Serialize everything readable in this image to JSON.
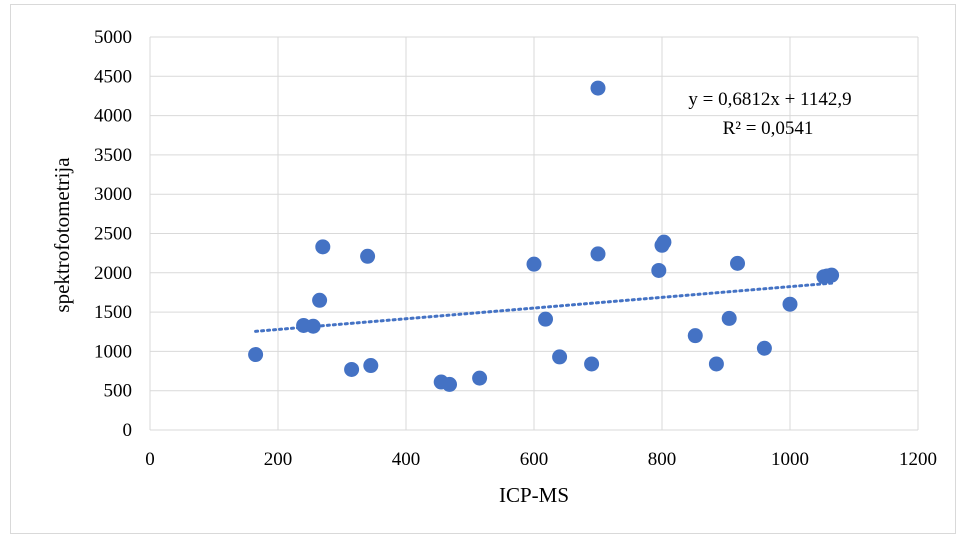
{
  "chart_data": {
    "type": "scatter",
    "xlabel": "ICP-MS",
    "ylabel": "spektrofotometrija",
    "xlim": [
      0,
      1200
    ],
    "ylim": [
      0,
      5000
    ],
    "x_ticks": [
      "0",
      "200",
      "400",
      "600",
      "800",
      "1000",
      "1200"
    ],
    "y_ticks": [
      "0",
      "500",
      "1000",
      "1500",
      "2000",
      "2500",
      "3000",
      "3500",
      "4000",
      "4500",
      "5000"
    ],
    "grid": true,
    "color": "#4472c4",
    "points": [
      {
        "x": 165,
        "y": 960
      },
      {
        "x": 240,
        "y": 1330
      },
      {
        "x": 255,
        "y": 1320
      },
      {
        "x": 265,
        "y": 1650
      },
      {
        "x": 270,
        "y": 2330
      },
      {
        "x": 315,
        "y": 770
      },
      {
        "x": 340,
        "y": 2210
      },
      {
        "x": 345,
        "y": 820
      },
      {
        "x": 455,
        "y": 610
      },
      {
        "x": 468,
        "y": 580
      },
      {
        "x": 515,
        "y": 660
      },
      {
        "x": 600,
        "y": 2110
      },
      {
        "x": 618,
        "y": 1410
      },
      {
        "x": 640,
        "y": 930
      },
      {
        "x": 690,
        "y": 840
      },
      {
        "x": 700,
        "y": 2240
      },
      {
        "x": 700,
        "y": 4350
      },
      {
        "x": 795,
        "y": 2030
      },
      {
        "x": 800,
        "y": 2350
      },
      {
        "x": 803,
        "y": 2390
      },
      {
        "x": 852,
        "y": 1200
      },
      {
        "x": 885,
        "y": 840
      },
      {
        "x": 905,
        "y": 1420
      },
      {
        "x": 918,
        "y": 2120
      },
      {
        "x": 960,
        "y": 1040
      },
      {
        "x": 1000,
        "y": 1600
      },
      {
        "x": 1053,
        "y": 1950
      },
      {
        "x": 1058,
        "y": 1960
      },
      {
        "x": 1065,
        "y": 1970
      }
    ],
    "trendline": {
      "type": "linear",
      "slope": 0.6812,
      "intercept": 1142.9,
      "x_range": [
        165,
        1065
      ],
      "equation_label": "y = 0,6812x + 1142,9",
      "r2_label": "R² = 0,0541"
    }
  }
}
